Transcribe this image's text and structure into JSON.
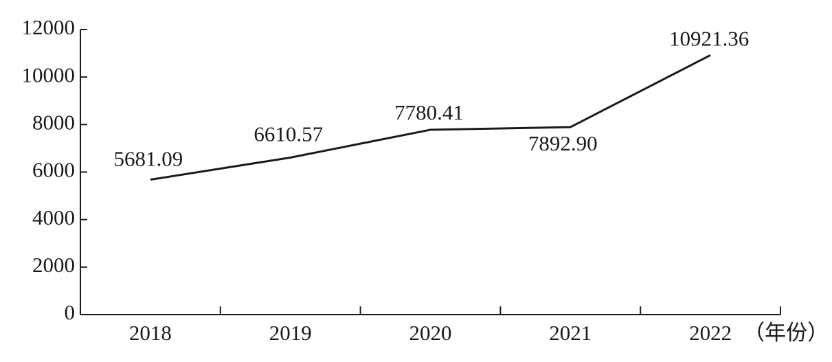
{
  "chart_data": {
    "type": "line",
    "categories": [
      "2018",
      "2019",
      "2020",
      "2021",
      "2022"
    ],
    "xlabel": "（年份）",
    "series": [
      {
        "color": "#1a1a1a",
        "values": [
          5681.09,
          6610.57,
          7780.41,
          7892.9,
          10921.36
        ],
        "value_labels": [
          "5681.09",
          "6610.57",
          "7780.41",
          "7892.90",
          "10921.36"
        ]
      }
    ],
    "ylim": [
      0,
      12000
    ],
    "yticks": [
      0,
      2000,
      4000,
      6000,
      8000,
      10000,
      12000
    ]
  }
}
